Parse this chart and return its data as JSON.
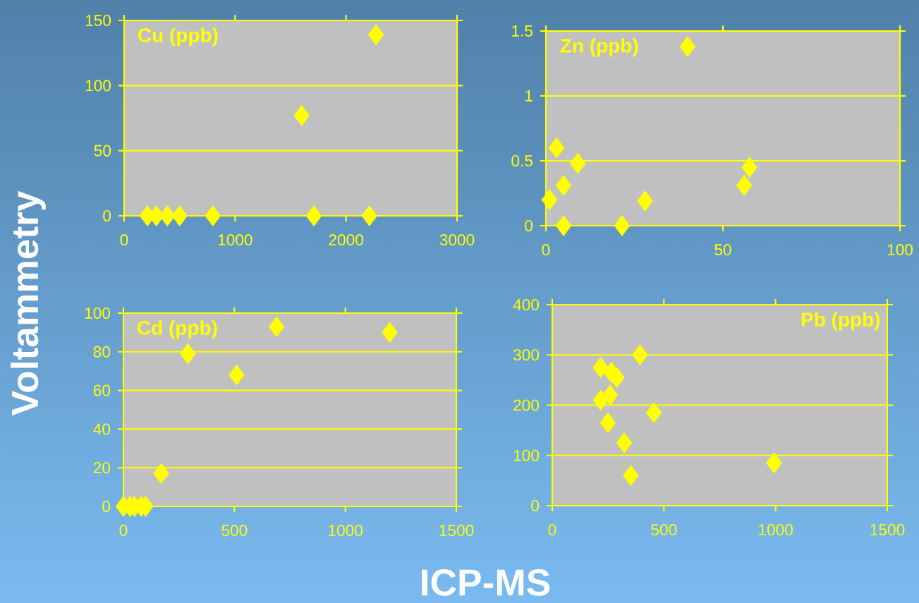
{
  "chart_data": [
    {
      "type": "scatter",
      "title": "Cu (ppb)",
      "ylabel": "Voltammetry",
      "color": "#ffff00",
      "marker": "diamond",
      "grid": "y",
      "x": [
        210,
        290,
        390,
        500,
        800,
        1710,
        2210,
        1600,
        2270
      ],
      "values": [
        0,
        0,
        0,
        0,
        0,
        0,
        0,
        77,
        139
      ],
      "xlim": [
        0,
        3000
      ],
      "ylim": [
        0,
        150
      ],
      "xticks": [
        0,
        1000,
        2000,
        3000
      ],
      "yticks": [
        0,
        50,
        100,
        150
      ]
    },
    {
      "type": "scatter",
      "title": "Zn (ppb)",
      "color": "#ffff00",
      "marker": "diamond",
      "grid": "y",
      "x": [
        1,
        3,
        9,
        5,
        5,
        21.5,
        28,
        40,
        57.5,
        56
      ],
      "values": [
        0.2,
        0.6,
        0.48,
        0.31,
        0,
        0,
        0.19,
        1.38,
        0.45,
        0.31
      ],
      "xlim": [
        0,
        100
      ],
      "ylim": [
        0,
        1.5
      ],
      "xticks": [
        0,
        50,
        100
      ],
      "yticks": [
        0,
        0.5,
        1,
        1.5
      ]
    },
    {
      "type": "scatter",
      "title": "Cd (ppb)",
      "xlabel": "ICP-MS",
      "color": "#ffff00",
      "marker": "diamond",
      "grid": "y",
      "x": [
        0,
        30,
        50,
        80,
        100,
        170,
        290,
        510,
        690,
        1200
      ],
      "values": [
        0,
        0,
        0,
        0,
        0,
        17,
        79,
        68,
        93,
        90
      ],
      "xlim": [
        0,
        1500
      ],
      "ylim": [
        0,
        100
      ],
      "xticks": [
        0,
        500,
        1000,
        1500
      ],
      "yticks": [
        0,
        20,
        40,
        60,
        80,
        100
      ]
    },
    {
      "type": "scatter",
      "title": "Pb (ppb)",
      "color": "#ffff00",
      "marker": "diamond",
      "grid": "y",
      "x": [
        217,
        265,
        289,
        217,
        259,
        249,
        322,
        352,
        393,
        455,
        993
      ],
      "values": [
        275,
        265,
        255,
        210,
        220,
        165,
        125,
        60,
        300,
        185,
        85
      ],
      "xlim": [
        0,
        1500
      ],
      "ylim": [
        0,
        400
      ],
      "xticks": [
        0,
        500,
        1000,
        1500
      ],
      "yticks": [
        0,
        100,
        200,
        300,
        400
      ]
    }
  ]
}
